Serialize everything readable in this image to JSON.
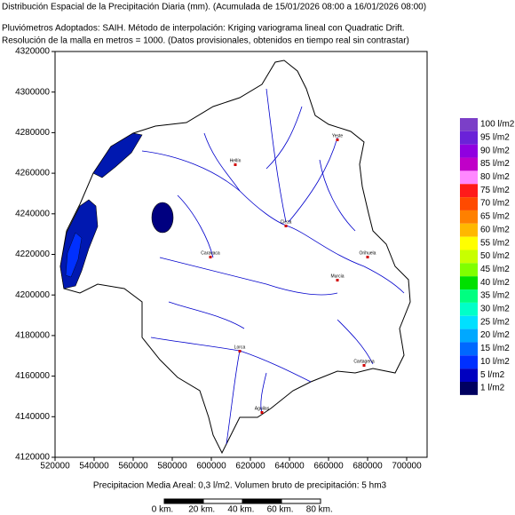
{
  "header": {
    "title": "Distribución Espacial de la Precipitación Diaria (mm). (Acumulada de 15/01/2026 08:00 a 16/01/2026 08:00)",
    "line1": "Pluviómetros Adoptados: SAIH.  Método de interpolación: Kriging variograma lineal con Quadratic Drift.",
    "line2": "Resolución de la malla en metros = 1000. (Datos provisionales, obtenidos en tiempo real sin contrastar)"
  },
  "axes": {
    "yticks": [
      "4320000",
      "4300000",
      "4280000",
      "4260000",
      "4240000",
      "4220000",
      "4200000",
      "4180000",
      "4160000",
      "4140000",
      "4120000"
    ],
    "xticks": [
      "520000",
      "540000",
      "560000",
      "580000",
      "600000",
      "620000",
      "640000",
      "660000",
      "680000",
      "700000"
    ]
  },
  "legend": [
    {
      "label": "100 l/m2",
      "color": "#7b3fc8"
    },
    {
      "label": "95 l/m2",
      "color": "#6a22d8"
    },
    {
      "label": "90 l/m2",
      "color": "#9000e0"
    },
    {
      "label": "85 l/m2",
      "color": "#c000c8"
    },
    {
      "label": "80 l/m2",
      "color": "#ff88ff"
    },
    {
      "label": "75 l/m2",
      "color": "#ff1a1a"
    },
    {
      "label": "70 l/m2",
      "color": "#ff4a00"
    },
    {
      "label": "65 l/m2",
      "color": "#ff8000"
    },
    {
      "label": "60 l/m2",
      "color": "#ffb800"
    },
    {
      "label": "55 l/m2",
      "color": "#ffff00"
    },
    {
      "label": "50 l/m2",
      "color": "#c8ff00"
    },
    {
      "label": "45 l/m2",
      "color": "#80ff00"
    },
    {
      "label": "40 l/m2",
      "color": "#00e000"
    },
    {
      "label": "35 l/m2",
      "color": "#00ff80"
    },
    {
      "label": "30 l/m2",
      "color": "#00ffc8"
    },
    {
      "label": "25 l/m2",
      "color": "#00e0ff"
    },
    {
      "label": "20 l/m2",
      "color": "#00a8ff"
    },
    {
      "label": "15 l/m2",
      "color": "#0068ff"
    },
    {
      "label": "10 l/m2",
      "color": "#0030ff"
    },
    {
      "label": "5 l/m2",
      "color": "#0000c0"
    },
    {
      "label": "1 l/m2",
      "color": "#000060"
    }
  ],
  "cities": [
    "Yeste",
    "Hellín",
    "Cieza",
    "Caravaca",
    "Orihuela",
    "Murcia",
    "Lorca",
    "Cartagena",
    "Aguilas"
  ],
  "footer": "Precipitacion Media Areal: 0,3 l/m2. Volumen bruto de precipitación: 5 hm3",
  "scale": [
    "0 km.",
    "20 km.",
    "40 km.",
    "60 km.",
    "80 km."
  ]
}
